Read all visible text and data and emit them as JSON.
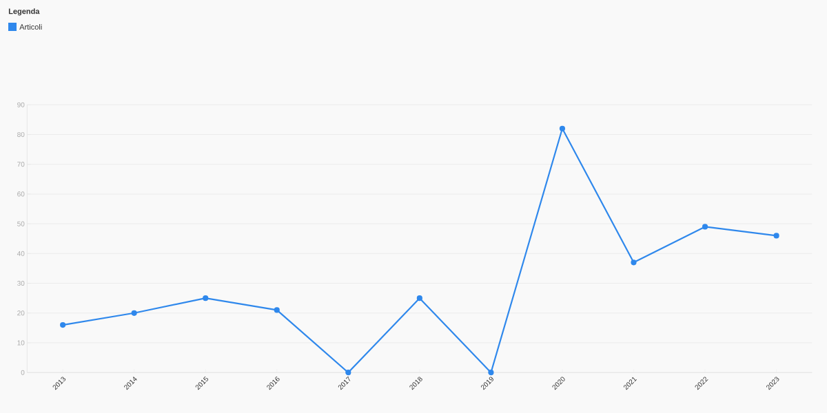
{
  "chart_data": {
    "type": "line",
    "legend_title": "Legenda",
    "categories": [
      "2013",
      "2014",
      "2015",
      "2016",
      "2017",
      "2018",
      "2019",
      "2020",
      "2021",
      "2022",
      "2023"
    ],
    "series": [
      {
        "name": "Articoli",
        "color": "#2f88ec",
        "values": [
          16,
          20,
          25,
          21,
          0,
          25,
          0,
          82,
          37,
          49,
          46
        ]
      }
    ],
    "ylim": [
      0,
      90
    ],
    "yticks": [
      0,
      10,
      20,
      30,
      40,
      50,
      60,
      70,
      80,
      90
    ],
    "grid": "y",
    "legend": "top left",
    "marker": "circle",
    "line_style": "solid"
  }
}
